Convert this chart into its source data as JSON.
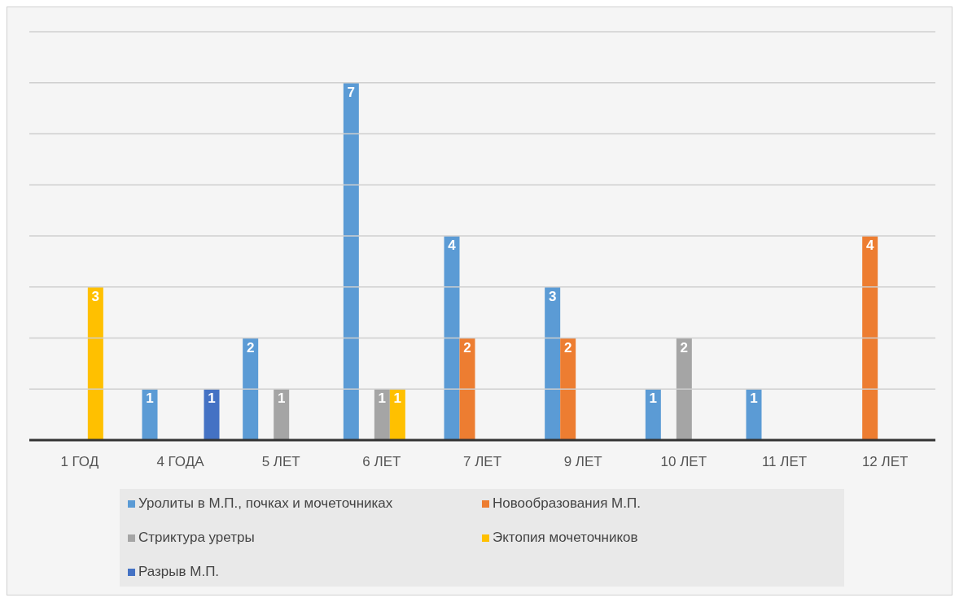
{
  "chart_data": {
    "type": "bar",
    "categories": [
      "1 ГОД",
      "4 ГОДА",
      "5 ЛЕТ",
      "6 ЛЕТ",
      "7 ЛЕТ",
      "9 ЛЕТ",
      "10 ЛЕТ",
      "11 ЛЕТ",
      "12 ЛЕТ"
    ],
    "series": [
      {
        "name": "Уролиты в М.П., почках и мочеточниках",
        "color": "#5b9bd5",
        "values": [
          null,
          1,
          2,
          7,
          4,
          3,
          1,
          1,
          null
        ]
      },
      {
        "name": "Новообразования М.П.",
        "color": "#ed7d31",
        "values": [
          null,
          null,
          null,
          null,
          2,
          2,
          null,
          null,
          4
        ]
      },
      {
        "name": "Стриктура уретры",
        "color": "#a5a5a5",
        "values": [
          null,
          null,
          1,
          1,
          null,
          null,
          2,
          null,
          null
        ]
      },
      {
        "name": "Эктопия мочеточников",
        "color": "#ffc000",
        "values": [
          3,
          null,
          null,
          1,
          null,
          null,
          null,
          null,
          null
        ]
      },
      {
        "name": "Разрыв М.П.",
        "color": "#4472c4",
        "values": [
          null,
          1,
          null,
          null,
          null,
          null,
          null,
          null,
          null
        ]
      }
    ],
    "ylim": [
      0,
      8
    ],
    "yticks": [
      {
        "value": 0,
        "label": null
      },
      {
        "value": 1,
        "label": null
      },
      {
        "value": 2,
        "label": null
      },
      {
        "value": 3,
        "label": null
      },
      {
        "value": 4,
        "label": null
      },
      {
        "value": 5,
        "label": null
      },
      {
        "value": 6,
        "label": null
      },
      {
        "value": 7,
        "label": null
      },
      {
        "value": 8,
        "label": null
      }
    ],
    "grid": "y",
    "legend": "bottom",
    "tick_labels": "x",
    "data_labels": true
  }
}
